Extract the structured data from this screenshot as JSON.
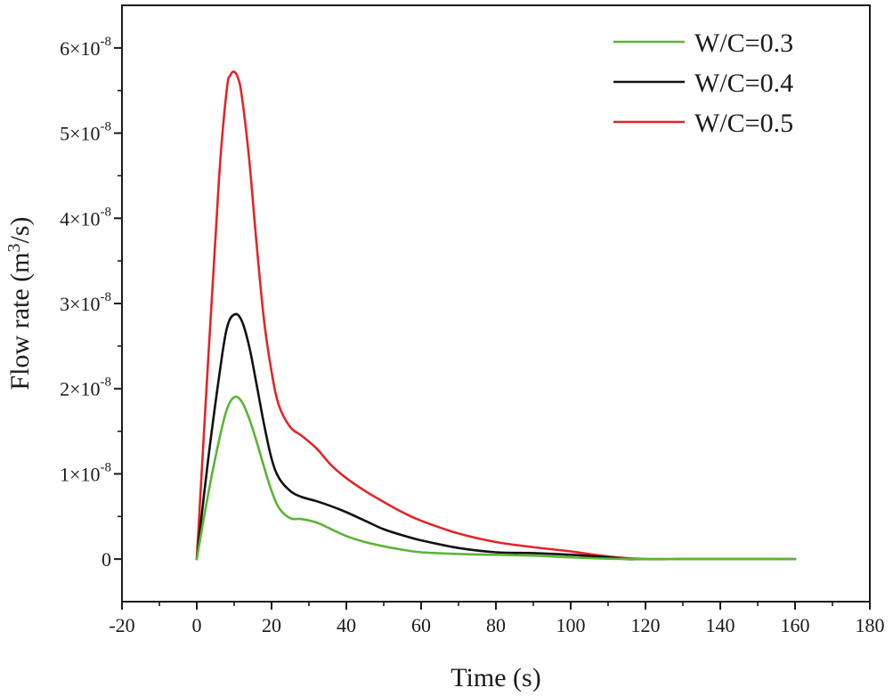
{
  "chart_data": {
    "type": "line",
    "title": "",
    "xlabel": "Time (s)",
    "ylabel": {
      "base": "Flow rate (m",
      "superscript": "3",
      "tail": "/s)"
    },
    "xlim": [
      -20,
      180
    ],
    "ylim": [
      -0.5,
      6.5
    ],
    "y_scale_note": "values in units of 1e-8 m3/s",
    "x_ticks": [
      {
        "value": -20,
        "label": "-20"
      },
      {
        "value": 0,
        "label": "0"
      },
      {
        "value": 20,
        "label": "20"
      },
      {
        "value": 40,
        "label": "40"
      },
      {
        "value": 60,
        "label": "60"
      },
      {
        "value": 80,
        "label": "80"
      },
      {
        "value": 100,
        "label": "100"
      },
      {
        "value": 120,
        "label": "120"
      },
      {
        "value": 140,
        "label": "140"
      },
      {
        "value": 160,
        "label": "160"
      },
      {
        "value": 180,
        "label": "180"
      }
    ],
    "y_ticks": [
      {
        "value": 0,
        "label": "0",
        "mantissa": "",
        "exponent": ""
      },
      {
        "value": 1,
        "label": "1×10-8",
        "mantissa": "1×10",
        "exponent": "-8"
      },
      {
        "value": 2,
        "label": "2×10-8",
        "mantissa": "2×10",
        "exponent": "-8"
      },
      {
        "value": 3,
        "label": "3×10-8",
        "mantissa": "3×10",
        "exponent": "-8"
      },
      {
        "value": 4,
        "label": "4×10-8",
        "mantissa": "4×10",
        "exponent": "-8"
      },
      {
        "value": 5,
        "label": "5×10-8",
        "mantissa": "5×10",
        "exponent": "-8"
      },
      {
        "value": 6,
        "label": "6×10-8",
        "mantissa": "6×10",
        "exponent": "-8"
      }
    ],
    "legend_position": "top-right",
    "grid": false,
    "series": [
      {
        "name": "W/C=0.3",
        "color": "#5ab534",
        "x": [
          0,
          3,
          6,
          8,
          10,
          12,
          14,
          16,
          18,
          20,
          22,
          25,
          28,
          32,
          36,
          40,
          45,
          50,
          55,
          60,
          70,
          80,
          90,
          100,
          110,
          120,
          130,
          140,
          150,
          160
        ],
        "y": [
          0,
          0.75,
          1.4,
          1.75,
          1.9,
          1.85,
          1.65,
          1.38,
          1.08,
          0.8,
          0.6,
          0.48,
          0.47,
          0.43,
          0.35,
          0.27,
          0.2,
          0.15,
          0.11,
          0.08,
          0.06,
          0.05,
          0.04,
          0.02,
          0.005,
          0.0,
          0.0,
          0.0,
          0.0,
          0.0
        ]
      },
      {
        "name": "W/C=0.4",
        "color": "#111111",
        "x": [
          0,
          3,
          6,
          8,
          10,
          12,
          14,
          16,
          18,
          20,
          22,
          25,
          28,
          32,
          36,
          40,
          45,
          50,
          55,
          60,
          70,
          80,
          90,
          100,
          110,
          115,
          120,
          130,
          140,
          150,
          160
        ],
        "y": [
          0,
          1.15,
          2.15,
          2.7,
          2.87,
          2.8,
          2.5,
          2.05,
          1.58,
          1.18,
          0.95,
          0.8,
          0.73,
          0.68,
          0.62,
          0.55,
          0.45,
          0.35,
          0.28,
          0.22,
          0.13,
          0.08,
          0.07,
          0.05,
          0.02,
          0.0,
          0.0,
          0.0,
          0.0,
          0.0,
          0.0
        ]
      },
      {
        "name": "W/C=0.5",
        "color": "#e0262a",
        "x": [
          0,
          3,
          6,
          8,
          9,
          10,
          11,
          12,
          14,
          16,
          18,
          20,
          22,
          25,
          28,
          32,
          36,
          40,
          45,
          50,
          55,
          60,
          70,
          80,
          90,
          100,
          110,
          120,
          130,
          140,
          150,
          160
        ],
        "y": [
          0,
          2.3,
          4.5,
          5.5,
          5.68,
          5.72,
          5.65,
          5.45,
          4.7,
          3.7,
          2.8,
          2.2,
          1.8,
          1.55,
          1.45,
          1.3,
          1.1,
          0.95,
          0.8,
          0.67,
          0.55,
          0.45,
          0.3,
          0.2,
          0.14,
          0.09,
          0.03,
          0.0,
          0.0,
          0.0,
          0.0,
          0.0
        ]
      }
    ]
  }
}
